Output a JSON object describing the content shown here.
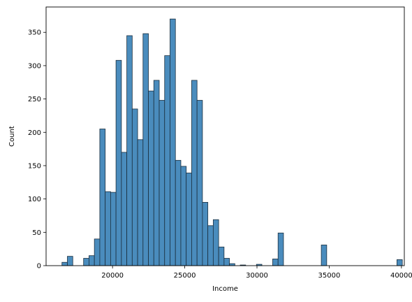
{
  "chart_data": {
    "type": "bar",
    "subtype": "histogram",
    "xlabel": "Income",
    "ylabel": "Count",
    "xlim": [
      15400,
      40200
    ],
    "ylim": [
      0,
      388
    ],
    "xticks": [
      20000,
      25000,
      30000,
      35000,
      40000
    ],
    "yticks": [
      0,
      50,
      100,
      150,
      200,
      250,
      300,
      350
    ],
    "grid": false,
    "legend": "none",
    "colors": {
      "bar_fill": "#4a8cbd",
      "bar_edge": "#1b2f3f",
      "axis": "#000000"
    },
    "bins": {
      "start": 16500,
      "width": 374,
      "counts": [
        5,
        14,
        0,
        0,
        11,
        15,
        40,
        205,
        111,
        110,
        308,
        170,
        345,
        235,
        189,
        348,
        262,
        278,
        248,
        315,
        370,
        158,
        149,
        139,
        278,
        248,
        95,
        60,
        69,
        28,
        11,
        3,
        0,
        1,
        0,
        0,
        2,
        0,
        0,
        10,
        49,
        0,
        0,
        0,
        0,
        0,
        0,
        0,
        31,
        0,
        0,
        0,
        0,
        0,
        0,
        0,
        0,
        0,
        0,
        0,
        0,
        0,
        9
      ]
    }
  }
}
